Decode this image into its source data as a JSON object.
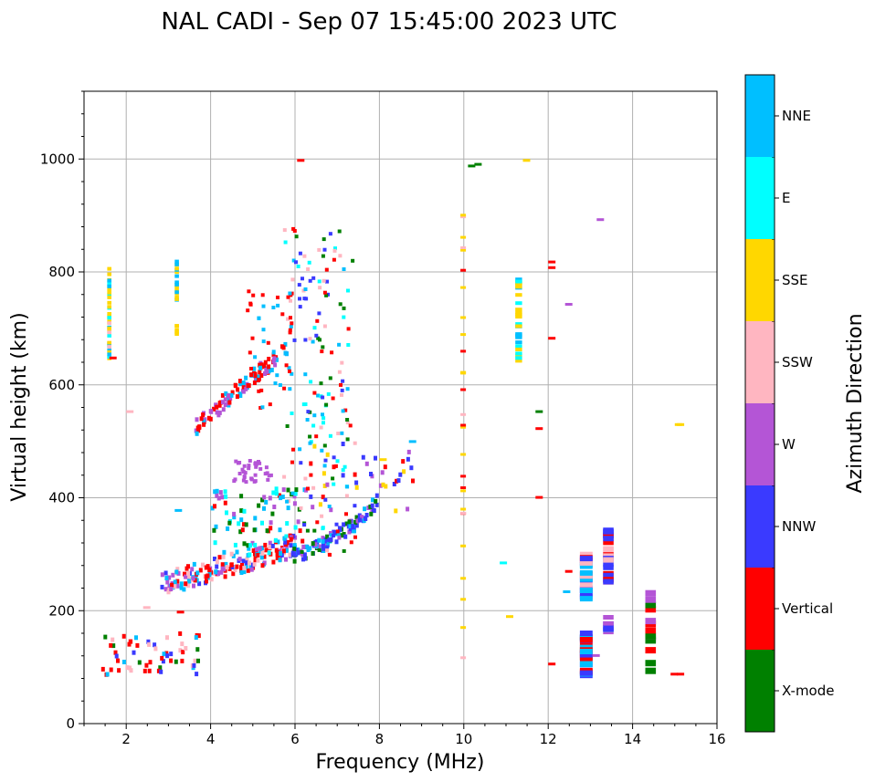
{
  "chart_data": {
    "type": "scatter",
    "title": "NAL CADI - Sep 07 15:45:00 2023 UTC",
    "xlabel": "Frequency (MHz)",
    "ylabel": "Virtual height (km)",
    "xlim": [
      1,
      16
    ],
    "ylim": [
      0,
      1120
    ],
    "xticks": [
      2,
      4,
      6,
      8,
      10,
      12,
      14,
      16
    ],
    "yticks": [
      0,
      200,
      400,
      600,
      800,
      1000
    ],
    "grid": true,
    "colorbar": {
      "title": "Azimuth Direction",
      "categories": [
        {
          "label": "X-mode",
          "color": "#008000"
        },
        {
          "label": "Vertical",
          "color": "#ff0000"
        },
        {
          "label": "NNW",
          "color": "#3a3aff"
        },
        {
          "label": "W",
          "color": "#b455d6"
        },
        {
          "label": "SSW",
          "color": "#ffb6c1"
        },
        {
          "label": "SSE",
          "color": "#ffd700"
        },
        {
          "label": "E",
          "color": "#00ffff"
        },
        {
          "label": "NNE",
          "color": "#00bfff"
        }
      ]
    },
    "clusters": [
      {
        "name": "low-E-layer",
        "x": [
          1.4,
          3.8
        ],
        "y": [
          90,
          165
        ],
        "mix": [
          "Vertical",
          "Vertical",
          "NNE",
          "X-mode",
          "NNW",
          "SSW"
        ],
        "n": 60,
        "h": 5
      },
      {
        "name": "F1-trace",
        "x": [
          2.8,
          6.0
        ],
        "y": [
          220,
          330
        ],
        "mix": [
          "Vertical",
          "Vertical",
          "NNE",
          "NNW",
          "W",
          "SSW"
        ],
        "n": 180,
        "h": 5
      },
      {
        "name": "F1-upper",
        "x": [
          4.0,
          6.2
        ],
        "y": [
          300,
          420
        ],
        "mix": [
          "Vertical",
          "NNE",
          "E",
          "W",
          "X-mode"
        ],
        "n": 90,
        "h": 5
      },
      {
        "name": "F2-o-trace",
        "x": [
          5.9,
          7.9
        ],
        "y": [
          285,
          400
        ],
        "mix": [
          "NNW",
          "NNW",
          "W",
          "X-mode",
          "NNE"
        ],
        "n": 110,
        "h": 5
      },
      {
        "name": "F2-x-trace",
        "x": [
          6.2,
          8.8
        ],
        "y": [
          380,
          500
        ],
        "mix": [
          "W",
          "SSE",
          "NNW",
          "Vertical"
        ],
        "n": 40,
        "h": 5
      },
      {
        "name": "multi-hop-1",
        "x": [
          3.6,
          5.8
        ],
        "y": [
          510,
          660
        ],
        "mix": [
          "Vertical",
          "Vertical",
          "NNE",
          "W"
        ],
        "n": 110,
        "h": 5
      },
      {
        "name": "multi-hop-2",
        "x": [
          4.5,
          5.4
        ],
        "y": [
          430,
          470
        ],
        "mix": [
          "W",
          "W",
          "W"
        ],
        "n": 35,
        "h": 4
      },
      {
        "name": "multi-hop-3",
        "x": [
          5.7,
          7.4
        ],
        "y": [
          300,
          880
        ],
        "mix": [
          "X-mode",
          "E",
          "NNE",
          "Vertical",
          "NNW",
          "SSW"
        ],
        "n": 170,
        "h": 4
      },
      {
        "name": "spread-F-upper",
        "x": [
          4.8,
          6.0
        ],
        "y": [
          560,
          770
        ],
        "mix": [
          "Vertical",
          "Vertical",
          "NNE"
        ],
        "n": 40,
        "h": 4
      },
      {
        "name": "column-1.6MHz",
        "x": [
          1.55,
          1.65
        ],
        "y": [
          650,
          810
        ],
        "mix": [
          "SSE",
          "SSE",
          "SSE",
          "E",
          "SSW",
          "NNE"
        ],
        "n": 40,
        "h": 4
      },
      {
        "name": "column-3.2MHz",
        "x": [
          3.15,
          3.25
        ],
        "y": [
          675,
          830
        ],
        "mix": [
          "SSE",
          "SSE",
          "SSE",
          "NNE"
        ],
        "n": 22,
        "h": 4
      },
      {
        "name": "column-10MHz",
        "x": [
          9.92,
          10.05
        ],
        "y": [
          110,
          920
        ],
        "mix": [
          "SSE",
          "SSE",
          "Vertical",
          "SSW"
        ],
        "n": 28,
        "h": 3
      },
      {
        "name": "column-11.3MHz",
        "x": [
          11.22,
          11.38
        ],
        "y": [
          640,
          790
        ],
        "mix": [
          "SSE",
          "SSE",
          "NNE",
          "E"
        ],
        "n": 26,
        "h": 4
      },
      {
        "name": "column-12.9MHz-low",
        "x": [
          12.75,
          13.05
        ],
        "y": [
          90,
          165
        ],
        "mix": [
          "Vertical",
          "Vertical",
          "NNE",
          "NNW"
        ],
        "n": 26,
        "h": 6
      },
      {
        "name": "column-12.9MHz-high",
        "x": [
          12.75,
          13.05
        ],
        "y": [
          225,
          305
        ],
        "mix": [
          "NNE",
          "NNE",
          "Vertical",
          "W",
          "SSW",
          "NNW"
        ],
        "n": 24,
        "h": 6
      },
      {
        "name": "column-13.4MHz-high",
        "x": [
          13.3,
          13.55
        ],
        "y": [
          255,
          350
        ],
        "mix": [
          "NNW",
          "NNW",
          "Vertical",
          "SSW"
        ],
        "n": 24,
        "h": 6
      },
      {
        "name": "column-13.4MHz-low",
        "x": [
          13.3,
          13.55
        ],
        "y": [
          160,
          195
        ],
        "mix": [
          "NNW",
          "W",
          "NNE"
        ],
        "n": 8,
        "h": 5
      },
      {
        "name": "column-14.4MHz",
        "x": [
          14.3,
          14.55
        ],
        "y": [
          90,
          240
        ],
        "mix": [
          "X-mode",
          "X-mode",
          "Vertical",
          "W",
          "SSE"
        ],
        "n": 14,
        "h": 7
      }
    ],
    "isolated_points": [
      {
        "x": 6.05,
        "y": 1000,
        "c": "Vertical"
      },
      {
        "x": 10.1,
        "y": 990,
        "c": "X-mode"
      },
      {
        "x": 10.25,
        "y": 993,
        "c": "X-mode"
      },
      {
        "x": 11.4,
        "y": 1000,
        "c": "SSE"
      },
      {
        "x": 13.15,
        "y": 895,
        "c": "W"
      },
      {
        "x": 12.0,
        "y": 820,
        "c": "Vertical"
      },
      {
        "x": 12.0,
        "y": 810,
        "c": "Vertical"
      },
      {
        "x": 12.4,
        "y": 745,
        "c": "W"
      },
      {
        "x": 12.0,
        "y": 685,
        "c": "Vertical"
      },
      {
        "x": 11.7,
        "y": 555,
        "c": "X-mode"
      },
      {
        "x": 11.7,
        "y": 525,
        "c": "Vertical"
      },
      {
        "x": 11.7,
        "y": 403,
        "c": "Vertical"
      },
      {
        "x": 15.0,
        "y": 532,
        "c": "SSE"
      },
      {
        "x": 15.05,
        "y": 532,
        "c": "SSE"
      },
      {
        "x": 12.4,
        "y": 272,
        "c": "Vertical"
      },
      {
        "x": 12.35,
        "y": 236,
        "c": "NNE"
      },
      {
        "x": 11.0,
        "y": 192,
        "c": "SSE"
      },
      {
        "x": 10.85,
        "y": 287,
        "c": "E"
      },
      {
        "x": 12.0,
        "y": 108,
        "c": "Vertical"
      },
      {
        "x": 13.05,
        "y": 123,
        "c": "W"
      },
      {
        "x": 14.9,
        "y": 90,
        "c": "Vertical"
      },
      {
        "x": 15.05,
        "y": 90,
        "c": "Vertical"
      },
      {
        "x": 3.15,
        "y": 380,
        "c": "NNE"
      },
      {
        "x": 2.0,
        "y": 555,
        "c": "SSW"
      },
      {
        "x": 1.6,
        "y": 650,
        "c": "Vertical"
      },
      {
        "x": 2.4,
        "y": 208,
        "c": "SSW"
      },
      {
        "x": 3.2,
        "y": 200,
        "c": "Vertical"
      },
      {
        "x": 8.0,
        "y": 470,
        "c": "SSE"
      },
      {
        "x": 8.7,
        "y": 502,
        "c": "NNE"
      }
    ]
  }
}
